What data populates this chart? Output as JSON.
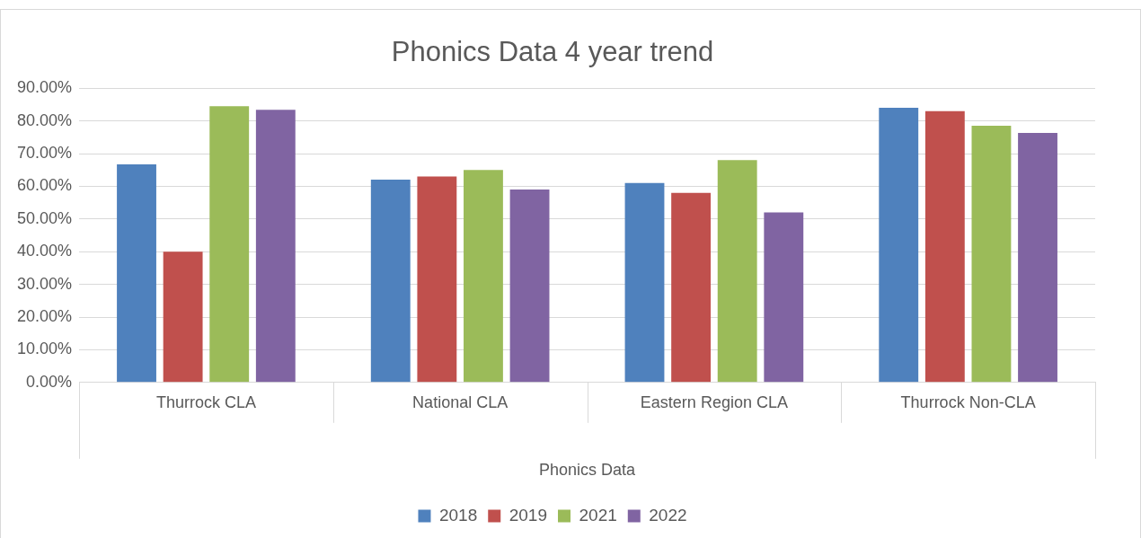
{
  "chart_data": {
    "type": "bar",
    "title": "Phonics Data 4 year trend",
    "xlabel": "Phonics Data",
    "categories": [
      "Thurrock CLA",
      "National CLA",
      "Eastern Region CLA",
      "Thurrock Non-CLA"
    ],
    "series": [
      {
        "name": "2018",
        "color": "#4f81bd",
        "values": [
          66.7,
          62,
          61,
          84
        ]
      },
      {
        "name": "2019",
        "color": "#c0504d",
        "values": [
          40,
          63,
          58,
          83
        ]
      },
      {
        "name": "2021",
        "color": "#9bbb59",
        "values": [
          84.5,
          65,
          68,
          78.5
        ]
      },
      {
        "name": "2022",
        "color": "#8064a2",
        "values": [
          83.4,
          59,
          52,
          76.3
        ]
      }
    ],
    "ylim": [
      0,
      90
    ],
    "yticks": [
      {
        "value": 0,
        "label": "0.00%"
      },
      {
        "value": 10,
        "label": "10.00%"
      },
      {
        "value": 20,
        "label": "20.00%"
      },
      {
        "value": 30,
        "label": "30.00%"
      },
      {
        "value": 40,
        "label": "40.00%"
      },
      {
        "value": 50,
        "label": "50.00%"
      },
      {
        "value": 60,
        "label": "60.00%"
      },
      {
        "value": 70,
        "label": "70.00%"
      },
      {
        "value": 80,
        "label": "80.00%"
      },
      {
        "value": 90,
        "label": "90.00%"
      }
    ],
    "grid": "y",
    "legend": "bottom"
  }
}
